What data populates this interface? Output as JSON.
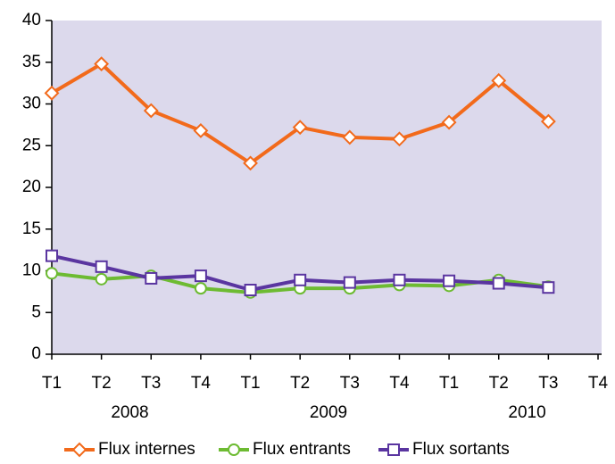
{
  "chart_data": {
    "type": "line",
    "categories": [
      "T1",
      "T2",
      "T3",
      "T4",
      "T1",
      "T2",
      "T3",
      "T4",
      "T1",
      "T2",
      "T3",
      "T4"
    ],
    "category_groups": [
      "2008",
      "2009",
      "2010"
    ],
    "series": [
      {
        "name": "Flux internes",
        "color": "#f26a1b",
        "marker": "diamond",
        "values": [
          31.3,
          34.8,
          29.2,
          26.8,
          22.9,
          27.2,
          26.0,
          25.8,
          27.8,
          32.8,
          27.9,
          null
        ]
      },
      {
        "name": "Flux entrants",
        "color": "#6dbb32",
        "marker": "circle",
        "values": [
          9.7,
          9.0,
          9.4,
          7.9,
          7.4,
          7.9,
          7.9,
          8.3,
          8.2,
          8.9,
          8.1,
          null
        ]
      },
      {
        "name": "Flux sortants",
        "color": "#5a35a0",
        "marker": "square",
        "values": [
          11.8,
          10.5,
          9.1,
          9.4,
          7.7,
          8.9,
          8.6,
          8.9,
          8.8,
          8.5,
          8.0,
          null
        ]
      }
    ],
    "ylim": [
      0,
      40
    ],
    "yticks": [
      0,
      5,
      10,
      15,
      20,
      25,
      30,
      35,
      40
    ],
    "grid": false,
    "legend": "bottom",
    "plot_background": "#dcd9ec"
  }
}
